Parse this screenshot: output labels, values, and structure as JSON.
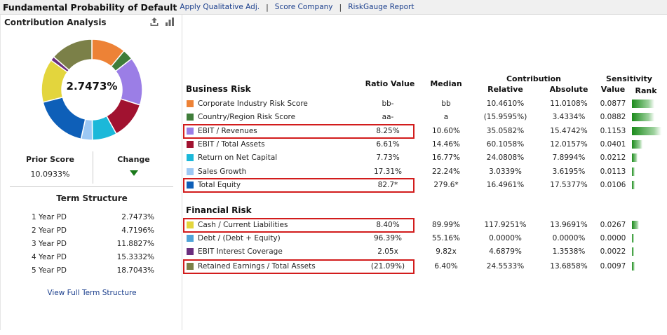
{
  "header": {
    "title": "Fundamental Probability of Default",
    "links": [
      "Apply Qualitative Adj.",
      "Score Company",
      "RiskGauge Report"
    ],
    "separator": "|"
  },
  "left_panel": {
    "title": "Contribution Analysis",
    "icons": [
      "export-icon",
      "bar-chart-icon"
    ],
    "donut_center": "2.7473%",
    "donut_segments": [
      {
        "name": "Corporate Industry Risk Score",
        "value": 11.0108,
        "color": "#ed8236"
      },
      {
        "name": "Country/Region Risk Score",
        "value": 3.4334,
        "color": "#3f7d3a"
      },
      {
        "name": "EBIT / Revenues",
        "value": 15.4742,
        "color": "#9b7ee6"
      },
      {
        "name": "EBIT / Total Assets",
        "value": 12.0157,
        "color": "#a11230"
      },
      {
        "name": "Return on Net Capital",
        "value": 7.8994,
        "color": "#1bb8d9"
      },
      {
        "name": "Sales Growth",
        "value": 3.6195,
        "color": "#9cc8f4"
      },
      {
        "name": "Total Equity",
        "value": 17.5377,
        "color": "#0e5fb8"
      },
      {
        "name": "Cash / Current Liabilities",
        "value": 13.9691,
        "color": "#e3d53d"
      },
      {
        "name": "Debt / (Debt + Equity)",
        "value": 0.0,
        "color": "#4fa3d8"
      },
      {
        "name": "EBIT Interest Coverage",
        "value": 1.3538,
        "color": "#6a2e7e"
      },
      {
        "name": "Retained Earnings / Total Assets",
        "value": 13.6858,
        "color": "#7b8048"
      }
    ],
    "prior_score_label": "Prior Score",
    "prior_score_value": "10.0933%",
    "change_label": "Change",
    "change_direction": "down",
    "term_structure_title": "Term Structure",
    "term_structure": [
      {
        "label": "1 Year PD",
        "value": "2.7473%"
      },
      {
        "label": "2 Year PD",
        "value": "4.7196%"
      },
      {
        "label": "3 Year PD",
        "value": "11.8827%"
      },
      {
        "label": "4 Year PD",
        "value": "15.3332%"
      },
      {
        "label": "5 Year PD",
        "value": "18.7043%"
      }
    ],
    "view_full_link": "View Full Term Structure"
  },
  "table": {
    "headers": {
      "ratio_value": "Ratio Value",
      "median": "Median",
      "contribution": "Contribution",
      "relative": "Relative",
      "absolute": "Absolute",
      "sensitivity": "Sensitivity",
      "value": "Value",
      "rank": "Rank"
    },
    "business_risk_title": "Business Risk",
    "financial_risk_title": "Financial Risk",
    "business_rows": [
      {
        "name": "Corporate Industry Risk Score",
        "color": "#ed8236",
        "ratio": "bb-",
        "median": "bb",
        "relative": "10.4610%",
        "absolute": "11.0108%",
        "sensitivity": "0.0877",
        "rank_level": 0.76,
        "highlighted": false
      },
      {
        "name": "Country/Region Risk Score",
        "color": "#3f7d3a",
        "ratio": "aa-",
        "median": "a",
        "relative": "(15.9595%)",
        "absolute": "3.4334%",
        "sensitivity": "0.0882",
        "rank_level": 0.76,
        "highlighted": false
      },
      {
        "name": "EBIT / Revenues",
        "color": "#9b7ee6",
        "ratio": "8.25%",
        "median": "10.60%",
        "relative": "35.0582%",
        "absolute": "15.4742%",
        "sensitivity": "0.1153",
        "rank_level": 1.0,
        "highlighted": true
      },
      {
        "name": "EBIT / Total Assets",
        "color": "#a11230",
        "ratio": "6.61%",
        "median": "14.46%",
        "relative": "60.1058%",
        "absolute": "12.0157%",
        "sensitivity": "0.0401",
        "rank_level": 0.35,
        "highlighted": false
      },
      {
        "name": "Return on Net Capital",
        "color": "#1bb8d9",
        "ratio": "7.73%",
        "median": "16.77%",
        "relative": "24.0808%",
        "absolute": "7.8994%",
        "sensitivity": "0.0212",
        "rank_level": 0.18,
        "highlighted": false
      },
      {
        "name": "Sales Growth",
        "color": "#9cc8f4",
        "ratio": "17.31%",
        "median": "22.24%",
        "relative": "3.0339%",
        "absolute": "3.6195%",
        "sensitivity": "0.0113",
        "rank_level": 0.1,
        "highlighted": false
      },
      {
        "name": "Total Equity",
        "color": "#0e5fb8",
        "ratio": "82.7*",
        "median": "279.6*",
        "relative": "16.4961%",
        "absolute": "17.5377%",
        "sensitivity": "0.0106",
        "rank_level": 0.1,
        "highlighted": true
      }
    ],
    "financial_rows": [
      {
        "name": "Cash / Current Liabilities",
        "color": "#e3d53d",
        "ratio": "8.40%",
        "median": "89.99%",
        "relative": "117.9251%",
        "absolute": "13.9691%",
        "sensitivity": "0.0267",
        "rank_level": 0.23,
        "highlighted": true
      },
      {
        "name": "Debt / (Debt + Equity)",
        "color": "#4fa3d8",
        "ratio": "96.39%",
        "median": "55.16%",
        "relative": "0.0000%",
        "absolute": "0.0000%",
        "sensitivity": "0.0000",
        "rank_level": 0.02,
        "highlighted": false
      },
      {
        "name": "EBIT Interest Coverage",
        "color": "#6a2e7e",
        "ratio": "2.05x",
        "median": "9.82x",
        "relative": "4.6879%",
        "absolute": "1.3538%",
        "sensitivity": "0.0022",
        "rank_level": 0.03,
        "highlighted": false
      },
      {
        "name": "Retained Earnings / Total Assets",
        "color": "#7b8048",
        "ratio": "(21.09%)",
        "median": "6.40%",
        "relative": "24.5533%",
        "absolute": "13.6858%",
        "sensitivity": "0.0097",
        "rank_level": 0.09,
        "highlighted": true
      }
    ]
  }
}
